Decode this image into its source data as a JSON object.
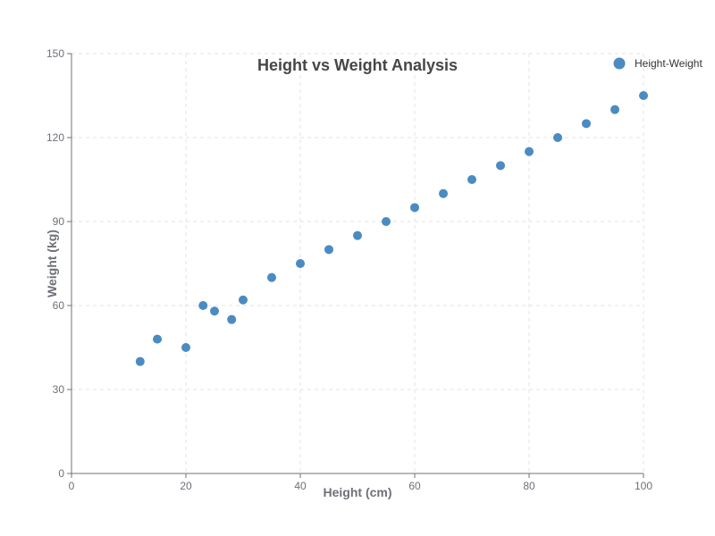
{
  "chart_data": {
    "type": "scatter",
    "title": "Height vs Weight Analysis",
    "xlabel": "Height (cm)",
    "ylabel": "Weight (kg)",
    "xlim": [
      0,
      100
    ],
    "ylim": [
      0,
      150
    ],
    "xticks": [
      0,
      20,
      40,
      60,
      80,
      100
    ],
    "yticks": [
      0,
      30,
      60,
      90,
      120,
      150
    ],
    "grid": true,
    "legend_position": "top-right",
    "color": "#4a8bc2",
    "series": [
      {
        "name": "Height-Weight",
        "points": [
          {
            "x": 12,
            "y": 40
          },
          {
            "x": 15,
            "y": 48
          },
          {
            "x": 20,
            "y": 45
          },
          {
            "x": 23,
            "y": 60
          },
          {
            "x": 25,
            "y": 58
          },
          {
            "x": 28,
            "y": 55
          },
          {
            "x": 30,
            "y": 62
          },
          {
            "x": 35,
            "y": 70
          },
          {
            "x": 40,
            "y": 75
          },
          {
            "x": 45,
            "y": 80
          },
          {
            "x": 50,
            "y": 85
          },
          {
            "x": 55,
            "y": 90
          },
          {
            "x": 60,
            "y": 95
          },
          {
            "x": 65,
            "y": 100
          },
          {
            "x": 70,
            "y": 105
          },
          {
            "x": 75,
            "y": 110
          },
          {
            "x": 80,
            "y": 115
          },
          {
            "x": 85,
            "y": 120
          },
          {
            "x": 90,
            "y": 125
          },
          {
            "x": 95,
            "y": 130
          },
          {
            "x": 100,
            "y": 135
          }
        ]
      }
    ]
  }
}
